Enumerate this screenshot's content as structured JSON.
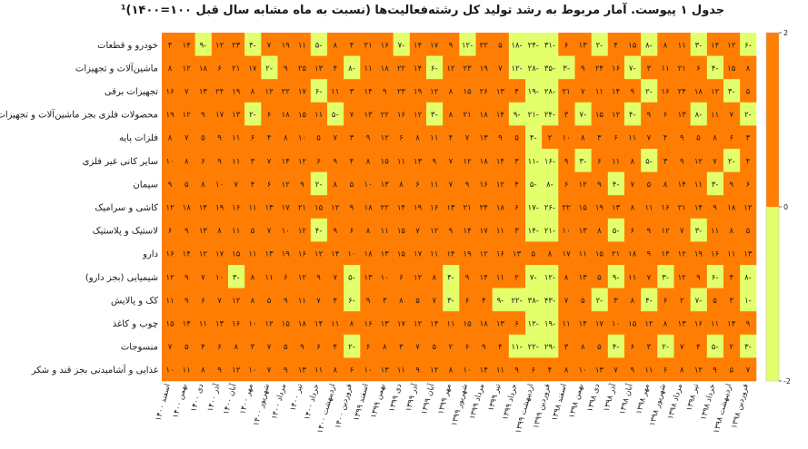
{
  "chart_data": {
    "type": "heatmap",
    "title": "جدول ۱ پیوست. آمار مربوط به رشد تولید کل رشته‌فعالیت‌ها (نسبت به ماه مشابه سال قبل ۱۰۰=۱۴۰۰)¹",
    "rows": [
      "خودرو و قطعات",
      "ماشین‌آلات و تجهیزات",
      "تجهیزات برقی",
      "محصولات فلزی بجز ماشین‌آلات و تجهیزات",
      "فلزات پایه",
      "سایر کانی غیر فلزی",
      "سیمان",
      "کاشی و سرامیک",
      "لاستیک و پلاستیک",
      "دارو",
      "شیمیایی (بجز دارو)",
      "کک و پالایش",
      "چوب و کاغذ",
      "منسوجات",
      "غذایی و آشامیدنی بجز قند و شکر"
    ],
    "columns": [
      "فروردین ۱۳۹۸",
      "اردیبهشت ۱۳۹۸",
      "خرداد ۱۳۹۸",
      "تیر ۱۳۹۸",
      "مرداد ۱۳۹۸",
      "شهریور ۱۳۹۸",
      "مهر ۱۳۹۸",
      "آبان ۱۳۹۸",
      "آذر ۱۳۹۸",
      "دی ۱۳۹۸",
      "بهمن ۱۳۹۸",
      "اسفند ۱۳۹۸",
      "فروردین ۱۳۹۹",
      "اردیبهشت ۱۳۹۹",
      "خرداد ۱۳۹۹",
      "تیر ۱۳۹۹",
      "مرداد ۱۳۹۹",
      "شهریور ۱۳۹۹",
      "مهر ۱۳۹۹",
      "آبان ۱۳۹۹",
      "آذر ۱۳۹۹",
      "دی ۱۳۹۹",
      "بهمن ۱۳۹۹",
      "اسفند ۱۳۹۹",
      "فروردین ۱۴۰۰",
      "اردیبهشت ۱۴۰۰",
      "خرداد ۱۴۰۰",
      "تیر ۱۴۰۰",
      "مرداد ۱۴۰۰",
      "شهریور ۱۴۰۰",
      "مهر ۱۴۰۰",
      "آبان ۱۴۰۰",
      "آذر ۱۴۰۰",
      "دی ۱۴۰۰",
      "بهمن ۱۴۰۰",
      "اسفند ۱۴۰۰"
    ],
    "values": [
      [
        -6,
        12,
        14,
        -3,
        11,
        8,
        -8,
        15,
        4,
        -2,
        13,
        6,
        -31,
        -24,
        -18,
        5,
        22,
        -12,
        9,
        17,
        14,
        -7,
        16,
        21,
        4,
        8,
        -5,
        11,
        19,
        7,
        -4,
        23,
        12,
        -9,
        14,
        3
      ],
      [
        8,
        15,
        -4,
        6,
        21,
        11,
        3,
        -7,
        16,
        24,
        9,
        -3,
        -35,
        -28,
        -12,
        7,
        19,
        23,
        12,
        -6,
        14,
        22,
        18,
        11,
        -8,
        4,
        13,
        25,
        9,
        -2,
        17,
        21,
        6,
        18,
        12,
        8
      ],
      [
        5,
        -3,
        12,
        18,
        24,
        16,
        -2,
        9,
        14,
        11,
        7,
        21,
        -28,
        -19,
        4,
        13,
        26,
        15,
        8,
        12,
        19,
        23,
        9,
        14,
        3,
        11,
        -6,
        17,
        22,
        12,
        8,
        19,
        24,
        13,
        7,
        16
      ],
      [
        -2,
        7,
        11,
        -8,
        13,
        6,
        9,
        -4,
        12,
        15,
        -7,
        3,
        -24,
        -21,
        -9,
        14,
        18,
        21,
        8,
        -3,
        12,
        16,
        22,
        13,
        7,
        -5,
        11,
        15,
        18,
        6,
        -2,
        13,
        17,
        9,
        12,
        19
      ],
      [
        3,
        6,
        8,
        5,
        9,
        4,
        7,
        11,
        6,
        3,
        8,
        10,
        2,
        -4,
        5,
        9,
        13,
        7,
        4,
        11,
        8,
        6,
        12,
        9,
        3,
        7,
        5,
        10,
        8,
        4,
        6,
        11,
        9,
        5,
        7,
        8
      ],
      [
        4,
        -2,
        7,
        12,
        9,
        3,
        -5,
        8,
        11,
        6,
        -3,
        9,
        -16,
        -11,
        3,
        14,
        18,
        12,
        7,
        9,
        13,
        11,
        15,
        8,
        4,
        9,
        6,
        12,
        14,
        7,
        3,
        11,
        9,
        6,
        8,
        10
      ],
      [
        6,
        9,
        -3,
        11,
        14,
        8,
        5,
        7,
        -4,
        9,
        12,
        6,
        -8,
        -5,
        4,
        12,
        16,
        9,
        7,
        11,
        6,
        8,
        13,
        10,
        5,
        8,
        -2,
        9,
        12,
        6,
        4,
        7,
        10,
        8,
        5,
        9
      ],
      [
        12,
        18,
        9,
        14,
        21,
        16,
        11,
        8,
        13,
        19,
        15,
        22,
        -26,
        -17,
        6,
        18,
        24,
        21,
        13,
        16,
        19,
        14,
        22,
        18,
        9,
        12,
        15,
        21,
        17,
        13,
        11,
        16,
        19,
        14,
        18,
        12
      ],
      [
        5,
        8,
        11,
        -3,
        7,
        12,
        9,
        6,
        -5,
        8,
        13,
        10,
        -21,
        -14,
        3,
        11,
        17,
        14,
        9,
        12,
        7,
        15,
        11,
        8,
        6,
        9,
        -4,
        12,
        10,
        7,
        5,
        11,
        8,
        13,
        9,
        6
      ],
      [
        13,
        11,
        16,
        19,
        12,
        14,
        9,
        18,
        21,
        15,
        11,
        17,
        8,
        5,
        13,
        16,
        12,
        19,
        14,
        11,
        17,
        15,
        13,
        18,
        10,
        14,
        12,
        16,
        19,
        13,
        11,
        15,
        17,
        12,
        14,
        16
      ],
      [
        -8,
        4,
        -6,
        9,
        12,
        -3,
        7,
        11,
        -9,
        5,
        13,
        8,
        -12,
        -7,
        2,
        11,
        14,
        9,
        -4,
        8,
        12,
        6,
        10,
        13,
        -5,
        7,
        9,
        12,
        6,
        11,
        8,
        -3,
        10,
        7,
        9,
        12
      ],
      [
        -1,
        3,
        5,
        -7,
        2,
        6,
        -4,
        8,
        3,
        -2,
        5,
        7,
        -43,
        -38,
        -22,
        -9,
        4,
        6,
        -3,
        7,
        5,
        8,
        3,
        9,
        -6,
        4,
        7,
        11,
        9,
        5,
        8,
        12,
        7,
        6,
        9,
        11
      ],
      [
        9,
        14,
        11,
        16,
        13,
        8,
        12,
        15,
        10,
        17,
        14,
        11,
        -19,
        -12,
        6,
        13,
        18,
        15,
        11,
        14,
        12,
        17,
        13,
        16,
        8,
        11,
        14,
        18,
        15,
        12,
        10,
        16,
        13,
        11,
        14,
        15
      ],
      [
        -3,
        2,
        -5,
        4,
        7,
        -2,
        3,
        6,
        -4,
        5,
        8,
        3,
        -29,
        -22,
        -11,
        4,
        9,
        6,
        2,
        5,
        7,
        3,
        8,
        6,
        -2,
        4,
        6,
        9,
        5,
        7,
        3,
        8,
        6,
        4,
        5,
        7
      ],
      [
        7,
        5,
        9,
        12,
        8,
        6,
        11,
        9,
        7,
        13,
        10,
        8,
        4,
        6,
        9,
        11,
        14,
        10,
        8,
        12,
        9,
        11,
        13,
        10,
        6,
        8,
        11,
        13,
        9,
        7,
        10,
        12,
        9,
        8,
        11,
        10
      ]
    ],
    "color_scale": {
      "min": -2,
      "mid": 0,
      "max": 2,
      "low_color": "#e3ff6b",
      "high_color": "#ff7d03"
    },
    "colorbar_ticks": [
      "2",
      "0",
      "-2"
    ],
    "grid": false,
    "legend_position": "right"
  }
}
